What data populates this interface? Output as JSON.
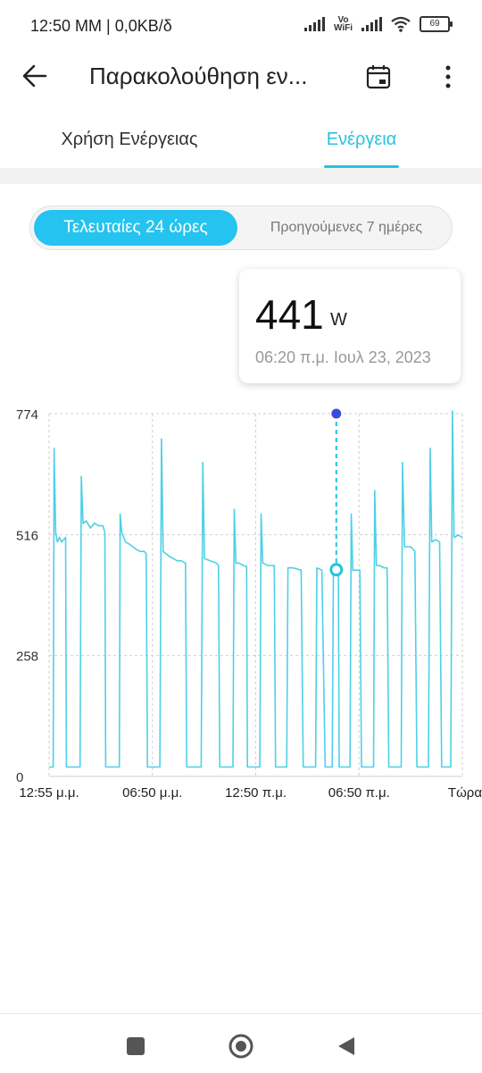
{
  "status": {
    "time": "12:50 MM | 0,0KB/δ",
    "vowifi_top": "Vo",
    "vowifi_bottom": "WiFi",
    "battery": "69"
  },
  "appbar": {
    "title": "Παρακολούθηση εν..."
  },
  "tabs": [
    {
      "label": "Χρήση Ενέργειας"
    },
    {
      "label": "Ενέργεια"
    }
  ],
  "range": {
    "active": "Τελευταίες 24 ώρες",
    "other": "Προηγούμενες 7 ημέρες"
  },
  "tooltip": {
    "value": "441",
    "unit": "W",
    "time": "06:20 π.μ.  Ιουλ 23, 2023"
  },
  "colors": {
    "accent": "#25c3df",
    "line": "#4fd0e6",
    "marker": "#3b49df"
  },
  "chart_data": {
    "type": "line",
    "ylim": [
      0,
      774
    ],
    "y_ticks": [
      0,
      258,
      516,
      774
    ],
    "x_tick_labels": [
      "12:55 μ.μ.",
      "06:50 μ.μ.",
      "12:50 π.μ.",
      "06:50 π.μ.",
      "Τώρα"
    ],
    "grid": true,
    "selected": {
      "x": 0.695,
      "y": 441,
      "label": "06:20 π.μ."
    },
    "series": [
      {
        "values": [
          [
            0.0,
            20
          ],
          [
            0.01,
            20
          ],
          [
            0.012,
            700
          ],
          [
            0.016,
            520
          ],
          [
            0.02,
            500
          ],
          [
            0.025,
            510
          ],
          [
            0.03,
            500
          ],
          [
            0.035,
            505
          ],
          [
            0.04,
            510
          ],
          [
            0.042,
            20
          ],
          [
            0.06,
            20
          ],
          [
            0.075,
            20
          ],
          [
            0.078,
            640
          ],
          [
            0.082,
            540
          ],
          [
            0.09,
            545
          ],
          [
            0.1,
            530
          ],
          [
            0.11,
            540
          ],
          [
            0.12,
            535
          ],
          [
            0.13,
            535
          ],
          [
            0.135,
            520
          ],
          [
            0.137,
            20
          ],
          [
            0.15,
            20
          ],
          [
            0.17,
            20
          ],
          [
            0.172,
            560
          ],
          [
            0.176,
            520
          ],
          [
            0.185,
            500
          ],
          [
            0.195,
            495
          ],
          [
            0.21,
            485
          ],
          [
            0.22,
            480
          ],
          [
            0.23,
            480
          ],
          [
            0.235,
            475
          ],
          [
            0.238,
            20
          ],
          [
            0.25,
            20
          ],
          [
            0.268,
            20
          ],
          [
            0.272,
            720
          ],
          [
            0.276,
            480
          ],
          [
            0.29,
            470
          ],
          [
            0.3,
            465
          ],
          [
            0.31,
            460
          ],
          [
            0.32,
            460
          ],
          [
            0.33,
            455
          ],
          [
            0.333,
            20
          ],
          [
            0.35,
            20
          ],
          [
            0.368,
            20
          ],
          [
            0.372,
            670
          ],
          [
            0.376,
            465
          ],
          [
            0.39,
            460
          ],
          [
            0.405,
            455
          ],
          [
            0.41,
            450
          ],
          [
            0.413,
            20
          ],
          [
            0.43,
            20
          ],
          [
            0.445,
            20
          ],
          [
            0.448,
            570
          ],
          [
            0.452,
            455
          ],
          [
            0.46,
            455
          ],
          [
            0.47,
            450
          ],
          [
            0.478,
            448
          ],
          [
            0.48,
            20
          ],
          [
            0.5,
            20
          ],
          [
            0.51,
            20
          ],
          [
            0.513,
            560
          ],
          [
            0.517,
            455
          ],
          [
            0.53,
            450
          ],
          [
            0.545,
            450
          ],
          [
            0.548,
            20
          ],
          [
            0.56,
            20
          ],
          [
            0.575,
            20
          ],
          [
            0.578,
            445
          ],
          [
            0.59,
            445
          ],
          [
            0.61,
            440
          ],
          [
            0.615,
            20
          ],
          [
            0.63,
            20
          ],
          [
            0.645,
            20
          ],
          [
            0.648,
            445
          ],
          [
            0.66,
            440
          ],
          [
            0.668,
            20
          ],
          [
            0.68,
            20
          ],
          [
            0.685,
            20
          ],
          [
            0.688,
            440
          ],
          [
            0.695,
            441
          ],
          [
            0.7,
            440
          ],
          [
            0.702,
            20
          ],
          [
            0.715,
            20
          ],
          [
            0.728,
            20
          ],
          [
            0.731,
            560
          ],
          [
            0.735,
            440
          ],
          [
            0.745,
            440
          ],
          [
            0.752,
            440
          ],
          [
            0.756,
            20
          ],
          [
            0.77,
            20
          ],
          [
            0.785,
            20
          ],
          [
            0.788,
            610
          ],
          [
            0.792,
            450
          ],
          [
            0.8,
            450
          ],
          [
            0.81,
            445
          ],
          [
            0.818,
            445
          ],
          [
            0.822,
            20
          ],
          [
            0.835,
            20
          ],
          [
            0.852,
            20
          ],
          [
            0.855,
            670
          ],
          [
            0.86,
            490
          ],
          [
            0.875,
            490
          ],
          [
            0.885,
            480
          ],
          [
            0.89,
            20
          ],
          [
            0.905,
            20
          ],
          [
            0.918,
            20
          ],
          [
            0.922,
            700
          ],
          [
            0.926,
            500
          ],
          [
            0.935,
            505
          ],
          [
            0.945,
            500
          ],
          [
            0.95,
            20
          ],
          [
            0.965,
            20
          ],
          [
            0.972,
            20
          ],
          [
            0.976,
            780
          ],
          [
            0.98,
            510
          ],
          [
            0.99,
            515
          ],
          [
            1.0,
            510
          ]
        ]
      }
    ]
  }
}
